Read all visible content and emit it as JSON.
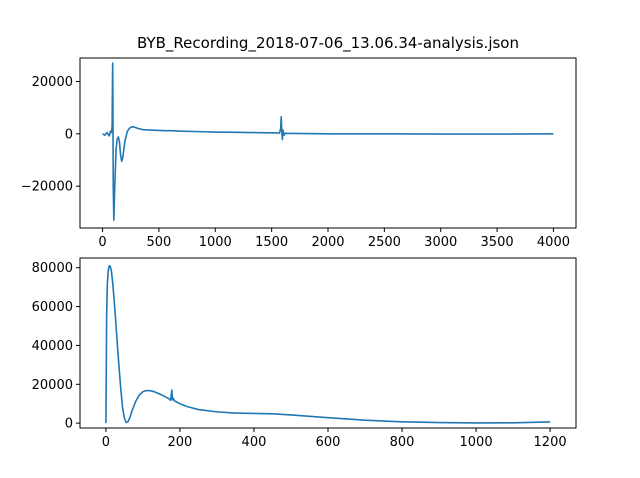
{
  "chart_data": [
    {
      "type": "line",
      "title": "BYB_Recording_2018-07-06_13.06.34-analysis.json",
      "xlabel": "",
      "ylabel": "",
      "xlim": [
        -200,
        4200
      ],
      "ylim": [
        -36000,
        29000
      ],
      "xticks": [
        "0",
        "500",
        "1000",
        "1500",
        "2000",
        "2500",
        "3000",
        "3500",
        "4000"
      ],
      "xtick_values": [
        0,
        500,
        1000,
        1500,
        2000,
        2500,
        3000,
        3500,
        4000
      ],
      "yticks": [
        "−20000",
        "0",
        "20000"
      ],
      "ytick_values": [
        -20000,
        0,
        20000
      ],
      "line_color": "#1f77b4",
      "grid": false,
      "series": [
        {
          "x": [
            0,
            20,
            40,
            60,
            70,
            80,
            85,
            88,
            90,
            92,
            95,
            100,
            105,
            110,
            115,
            120,
            130,
            140,
            150,
            160,
            170,
            180,
            190,
            200,
            220,
            240,
            260,
            280,
            300,
            320,
            340,
            360,
            400,
            450,
            500,
            550,
            600,
            700,
            800,
            900,
            1000,
            1100,
            1200,
            1300,
            1400,
            1500,
            1570,
            1580,
            1585,
            1590,
            1595,
            1600,
            1610,
            1620,
            1700,
            1800,
            2000,
            2500,
            3000,
            3500,
            4000
          ],
          "y": [
            0,
            -500,
            500,
            -800,
            1000,
            500,
            3000,
            20000,
            27000,
            10000,
            -20000,
            -33000,
            -25000,
            -18000,
            -12000,
            -6000,
            -2000,
            -1200,
            -3000,
            -8000,
            -10500,
            -9000,
            -5500,
            -2500,
            1000,
            2200,
            2700,
            2600,
            2300,
            2000,
            1800,
            1600,
            1500,
            1400,
            1300,
            1200,
            1200,
            1000,
            900,
            800,
            700,
            650,
            600,
            500,
            450,
            400,
            300,
            2000,
            6500,
            1000,
            -2200,
            1500,
            -500,
            200,
            150,
            100,
            0,
            0,
            -100,
            -100,
            0
          ]
        }
      ]
    },
    {
      "type": "line",
      "title": "",
      "xlabel": "",
      "ylabel": "",
      "xlim": [
        -70,
        1270
      ],
      "ylim": [
        -2500,
        85000
      ],
      "xticks": [
        "0",
        "200",
        "400",
        "600",
        "800",
        "1000",
        "1200"
      ],
      "xtick_values": [
        0,
        200,
        400,
        600,
        800,
        1000,
        1200
      ],
      "yticks": [
        "0",
        "20000",
        "40000",
        "60000",
        "80000"
      ],
      "ytick_values": [
        0,
        20000,
        40000,
        60000,
        80000
      ],
      "line_color": "#1f77b4",
      "grid": false,
      "series": [
        {
          "x": [
            0,
            2,
            4,
            6,
            8,
            10,
            12,
            15,
            18,
            22,
            26,
            30,
            35,
            40,
            45,
            50,
            55,
            60,
            65,
            70,
            80,
            90,
            100,
            110,
            120,
            130,
            140,
            150,
            160,
            170,
            175,
            178,
            180,
            182,
            185,
            190,
            200,
            220,
            250,
            300,
            350,
            400,
            450,
            500,
            550,
            600,
            700,
            800,
            900,
            1000,
            1100,
            1200
          ],
          "y": [
            0,
            55000,
            72000,
            78000,
            80500,
            81000,
            80500,
            78000,
            73000,
            64000,
            54000,
            43000,
            30000,
            18000,
            8000,
            2500,
            300,
            800,
            3000,
            6000,
            11000,
            14500,
            16200,
            16800,
            16700,
            16200,
            15400,
            14600,
            13600,
            12600,
            11800,
            17000,
            12000,
            12800,
            11500,
            11000,
            10000,
            8500,
            7000,
            5800,
            5200,
            5000,
            4800,
            4200,
            3500,
            2800,
            1500,
            700,
            300,
            100,
            150,
            600
          ]
        }
      ]
    }
  ]
}
